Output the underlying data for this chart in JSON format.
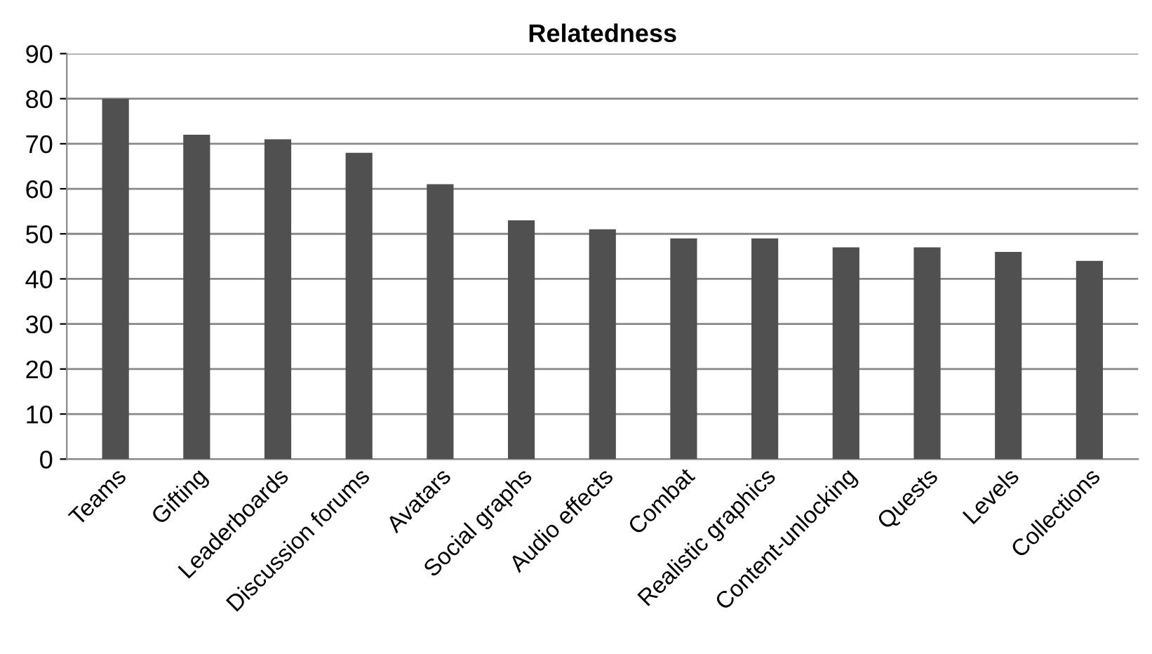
{
  "chart_data": {
    "type": "bar",
    "title": "Relatedness",
    "categories": [
      "Teams",
      "Gifting",
      "Leaderboards",
      "Discussion forums",
      "Avatars",
      "Social graphs",
      "Audio effects",
      "Combat",
      "Realistic graphics",
      "Content-unlocking",
      "Quests",
      "Levels",
      "Collections"
    ],
    "values": [
      80,
      72,
      71,
      68,
      61,
      53,
      51,
      49,
      49,
      47,
      47,
      46,
      44
    ],
    "color": "#505050",
    "ylim": [
      0,
      90
    ],
    "yticks": [
      0,
      10,
      20,
      30,
      40,
      50,
      60,
      70,
      80,
      90
    ],
    "grid": "y"
  }
}
